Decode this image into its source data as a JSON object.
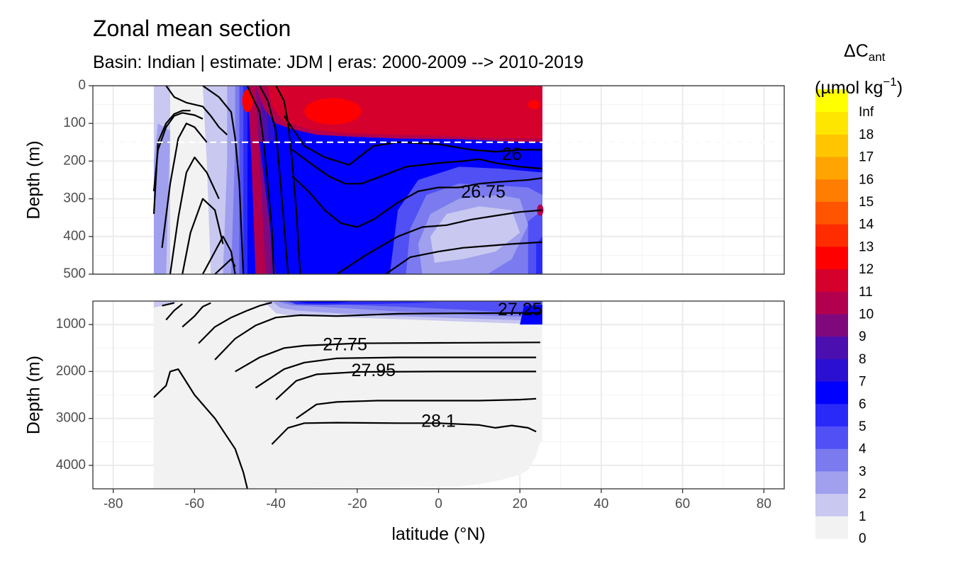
{
  "title": "Zonal mean section",
  "subtitle": "Basin: Indian | estimate: JDM  | eras: 2000-2009 --> 2010-2019",
  "chart_data": {
    "type": "heatmap",
    "description_of_variable": "Zonal mean change in anthropogenic carbon between eras",
    "x": {
      "label": "latitude (°N)",
      "range": [
        -85,
        85
      ],
      "ticks": [
        -80,
        -60,
        -40,
        -20,
        0,
        20,
        40,
        60,
        80
      ],
      "tick_labels": [
        "-80",
        "-60",
        "-40",
        "-20",
        "0",
        "20",
        "40",
        "60",
        "80"
      ],
      "data_extent": [
        -70,
        25.5
      ]
    },
    "panels": [
      {
        "name": "upper",
        "ylabel": "Depth (m)",
        "ylim": [
          0,
          500
        ],
        "yticks": [
          0,
          100,
          200,
          300,
          400,
          500
        ],
        "ytick_labels": [
          "0",
          "100",
          "200",
          "300",
          "400",
          "500"
        ],
        "reference_line_depth": 150,
        "isopycnal_labels": [
          {
            "text": "26",
            "lat": 18,
            "depth": 185
          },
          {
            "text": "26.75",
            "lat": 11,
            "depth": 285
          }
        ]
      },
      {
        "name": "lower",
        "ylabel": "Depth (m)",
        "ylim": [
          500,
          4500
        ],
        "yticks": [
          1000,
          2000,
          3000,
          4000
        ],
        "ytick_labels": [
          "1000",
          "2000",
          "3000",
          "4000"
        ],
        "isopycnal_labels": [
          {
            "text": "27.25",
            "lat": 20,
            "depth": 700
          },
          {
            "text": "27.75",
            "lat": -23,
            "depth": 1450
          },
          {
            "text": "27.95",
            "lat": -16,
            "depth": 2000
          },
          {
            "text": "28.1",
            "lat": 0,
            "depth": 3080
          }
        ]
      }
    ],
    "isopycnals": {
      "upper": [
        [
          [
            -70,
            340
          ],
          [
            -69,
            150
          ],
          [
            -67,
            100
          ],
          [
            -65,
            75
          ],
          [
            -63,
            66
          ],
          [
            -61,
            66
          ]
        ],
        [
          [
            -70,
            280
          ],
          [
            -69,
            170
          ],
          [
            -67,
            110
          ],
          [
            -65,
            80
          ],
          [
            -63,
            72
          ],
          [
            -60,
            78
          ],
          [
            -58,
            88
          ]
        ],
        [
          [
            -68,
            430
          ],
          [
            -66,
            260
          ],
          [
            -64,
            140
          ],
          [
            -62,
            100
          ],
          [
            -60,
            110
          ],
          [
            -57,
            150
          ]
        ],
        [
          [
            -66,
            500
          ],
          [
            -64,
            350
          ],
          [
            -62,
            230
          ],
          [
            -60,
            190
          ],
          [
            -57,
            230
          ],
          [
            -54,
            300
          ]
        ],
        [
          [
            -63,
            500
          ],
          [
            -61,
            390
          ],
          [
            -58,
            300
          ],
          [
            -55,
            330
          ],
          [
            -53,
            420
          ]
        ],
        [
          [
            -58,
            500
          ],
          [
            -55,
            440
          ],
          [
            -53,
            400
          ],
          [
            -51,
            440
          ],
          [
            -50,
            500
          ]
        ],
        [
          [
            -55,
            500
          ],
          [
            -53,
            480
          ],
          [
            -51,
            460
          ],
          [
            -50,
            480
          ]
        ],
        [
          [
            -67,
            0
          ],
          [
            -65,
            30
          ],
          [
            -62,
            45
          ],
          [
            -58,
            55
          ],
          [
            -56,
            80
          ],
          [
            -54,
            110
          ],
          [
            -52,
            130
          ]
        ],
        [
          [
            -58,
            0
          ],
          [
            -54,
            30
          ],
          [
            -51,
            70
          ],
          [
            -50,
            140
          ],
          [
            -49,
            260
          ],
          [
            -48.5,
            380
          ],
          [
            -48,
            500
          ]
        ],
        [
          [
            -47,
            0
          ],
          [
            -46,
            25
          ],
          [
            -44,
            70
          ],
          [
            -43,
            150
          ],
          [
            -42,
            260
          ],
          [
            -41,
            380
          ],
          [
            -40.5,
            500
          ]
        ],
        [
          [
            -44,
            0
          ],
          [
            -42,
            40
          ],
          [
            -40,
            120
          ],
          [
            -39,
            240
          ],
          [
            -38,
            370
          ],
          [
            -37,
            500
          ]
        ],
        [
          [
            -40,
            0
          ],
          [
            -38,
            40
          ],
          [
            -37,
            100
          ],
          [
            -36,
            200
          ],
          [
            -35,
            330
          ],
          [
            -34,
            500
          ]
        ],
        [
          [
            -38,
            80
          ],
          [
            -33,
            160
          ],
          [
            -28,
            190
          ],
          [
            -22,
            210
          ],
          [
            -16,
            160
          ],
          [
            -10,
            150
          ],
          [
            0,
            155
          ],
          [
            8,
            170
          ],
          [
            14,
            175
          ],
          [
            20,
            170
          ],
          [
            25.5,
            170
          ]
        ],
        [
          [
            -36,
            170
          ],
          [
            -31,
            210
          ],
          [
            -27,
            240
          ],
          [
            -23,
            260
          ],
          [
            -19,
            260
          ],
          [
            -14,
            240
          ],
          [
            -8,
            215
          ],
          [
            0,
            205
          ],
          [
            6,
            200
          ],
          [
            10,
            195
          ],
          [
            14,
            205
          ],
          [
            20,
            215
          ],
          [
            25.5,
            220
          ]
        ],
        [
          [
            -36,
            240
          ],
          [
            -32,
            280
          ],
          [
            -28,
            330
          ],
          [
            -24,
            365
          ],
          [
            -20,
            375
          ],
          [
            -16,
            355
          ],
          [
            -10,
            310
          ],
          [
            -5,
            280
          ],
          [
            0,
            270
          ],
          [
            5,
            270
          ],
          [
            10,
            260
          ],
          [
            15,
            255
          ],
          [
            22,
            250
          ],
          [
            25.5,
            245
          ]
        ],
        [
          [
            -25,
            500
          ],
          [
            -18,
            450
          ],
          [
            -10,
            400
          ],
          [
            -4,
            375
          ],
          [
            2,
            370
          ],
          [
            8,
            355
          ],
          [
            14,
            345
          ],
          [
            20,
            335
          ],
          [
            25.5,
            330
          ]
        ],
        [
          [
            -13,
            500
          ],
          [
            -7,
            455
          ],
          [
            0,
            440
          ],
          [
            6,
            430
          ],
          [
            12,
            425
          ],
          [
            18,
            420
          ],
          [
            25.5,
            415
          ]
        ]
      ],
      "lower": [
        [
          [
            -68,
            600
          ],
          [
            -65,
            540
          ]
        ],
        [
          [
            -67,
            900
          ],
          [
            -65,
            700
          ],
          [
            -63,
            560
          ]
        ],
        [
          [
            -63,
            1050
          ],
          [
            -60,
            820
          ],
          [
            -58,
            620
          ],
          [
            -56,
            540
          ]
        ],
        [
          [
            -59,
            1400
          ],
          [
            -55,
            1050
          ],
          [
            -51,
            850
          ],
          [
            -47,
            700
          ],
          [
            -44,
            600
          ],
          [
            -41,
            530
          ]
        ],
        [
          [
            -55,
            1750
          ],
          [
            -50,
            1300
          ],
          [
            -45,
            1020
          ],
          [
            -40,
            850
          ],
          [
            -34,
            800
          ],
          [
            -25,
            820
          ],
          [
            -10,
            770
          ],
          [
            5,
            760
          ],
          [
            25,
            750
          ]
        ],
        [
          [
            -50,
            2000
          ],
          [
            -44,
            1700
          ],
          [
            -38,
            1500
          ],
          [
            -33,
            1450
          ],
          [
            -20,
            1400
          ],
          [
            0,
            1390
          ],
          [
            25,
            1380
          ]
        ],
        [
          [
            -45,
            2350
          ],
          [
            -38,
            1950
          ],
          [
            -33,
            1810
          ],
          [
            -25,
            1720
          ],
          [
            -10,
            1700
          ],
          [
            10,
            1700
          ],
          [
            24,
            1700
          ]
        ],
        [
          [
            -40,
            2600
          ],
          [
            -35,
            2200
          ],
          [
            -30,
            2060
          ],
          [
            -20,
            2010
          ],
          [
            0,
            2000
          ],
          [
            24,
            2000
          ]
        ],
        [
          [
            -35,
            3000
          ],
          [
            -30,
            2700
          ],
          [
            -25,
            2650
          ],
          [
            -15,
            2620
          ],
          [
            0,
            2620
          ],
          [
            10,
            2620
          ],
          [
            20,
            2600
          ],
          [
            24,
            2580
          ]
        ],
        [
          [
            -41,
            3550
          ],
          [
            -37,
            3200
          ],
          [
            -33,
            3100
          ],
          [
            -25,
            3090
          ],
          [
            -10,
            3100
          ],
          [
            0,
            3100
          ],
          [
            10,
            3140
          ],
          [
            14,
            3200
          ],
          [
            18,
            3150
          ],
          [
            22,
            3200
          ],
          [
            24,
            3280
          ]
        ],
        [
          [
            -70,
            2550
          ],
          [
            -67,
            2300
          ],
          [
            -66,
            2000
          ],
          [
            -64,
            1950
          ],
          [
            -60,
            2500
          ],
          [
            -55,
            3000
          ],
          [
            -50,
            3650
          ],
          [
            -48,
            4150
          ],
          [
            -47,
            4500
          ]
        ]
      ]
    },
    "colorbar": {
      "title": "ΔC",
      "title_subscript": "ant",
      "unit": "(µmol kg",
      "unit_superscript": "−1",
      "unit_end": ")",
      "levels": [
        "0",
        "1",
        "2",
        "3",
        "4",
        "5",
        "6",
        "7",
        "8",
        "9",
        "10",
        "11",
        "12",
        "13",
        "14",
        "15",
        "16",
        "17",
        "18",
        "Inf"
      ],
      "colors": [
        "#f2f2f2",
        "#c8c8f0",
        "#a0a0ee",
        "#7b7bef",
        "#5050f5",
        "#2a2af8",
        "#0000ff",
        "#2b10d2",
        "#4a0fae",
        "#80087d",
        "#b3004e",
        "#d5002b",
        "#ff0000",
        "#ff2c00",
        "#ff5500",
        "#ff7d00",
        "#ffa400",
        "#ffc600",
        "#ffe600",
        "#ffff00"
      ]
    }
  }
}
